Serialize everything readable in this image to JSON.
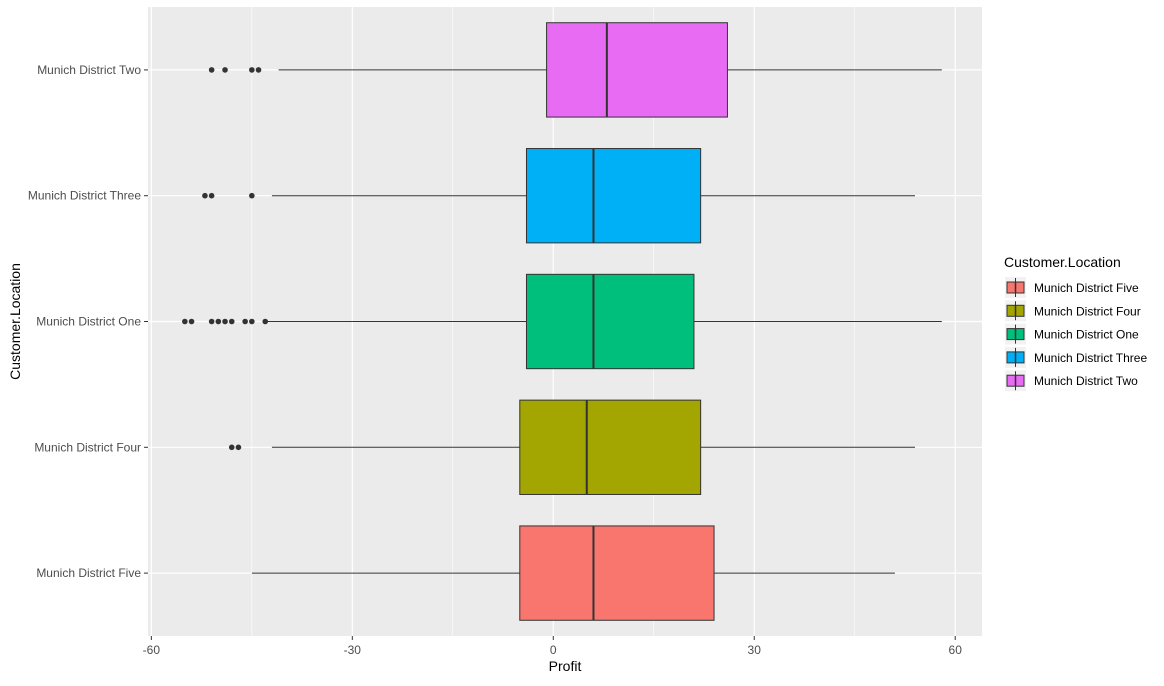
{
  "chart_data": {
    "type": "boxplot",
    "orientation": "horizontal",
    "xlabel": "Profit",
    "ylabel": "Customer.Location",
    "xlim": [
      -60.5,
      64
    ],
    "xticks": [
      -60,
      -30,
      0,
      30,
      60
    ],
    "xtick_labels": [
      "-60",
      "-30",
      "0",
      "30",
      "60"
    ],
    "grid": true,
    "legend_position": "right",
    "legend_title": "Customer.Location",
    "categories": [
      "Munich District Five",
      "Munich District Four",
      "Munich District One",
      "Munich District Three",
      "Munich District Two"
    ],
    "series": [
      {
        "name": "Munich District Five",
        "color": "#F8766D",
        "whisker_low": -45,
        "q1": -5,
        "median": 6,
        "q3": 24,
        "whisker_high": 51,
        "outliers": []
      },
      {
        "name": "Munich District Four",
        "color": "#A3A500",
        "whisker_low": -42,
        "q1": -5,
        "median": 5,
        "q3": 22,
        "whisker_high": 54,
        "outliers": [
          -48,
          -47
        ]
      },
      {
        "name": "Munich District One",
        "color": "#00BF7D",
        "whisker_low": -43,
        "q1": -4,
        "median": 6,
        "q3": 21,
        "whisker_high": 58,
        "outliers": [
          -55,
          -54,
          -51,
          -50,
          -49,
          -48,
          -46,
          -45,
          -43
        ]
      },
      {
        "name": "Munich District Three",
        "color": "#00B0F6",
        "whisker_low": -42,
        "q1": -4,
        "median": 6,
        "q3": 22,
        "whisker_high": 54,
        "outliers": [
          -52,
          -51,
          -45
        ]
      },
      {
        "name": "Munich District Two",
        "color": "#E76BF3",
        "whisker_low": -41,
        "q1": -1,
        "median": 8,
        "q3": 26,
        "whisker_high": 58,
        "outliers": [
          -51,
          -49,
          -45,
          -44
        ]
      }
    ]
  }
}
